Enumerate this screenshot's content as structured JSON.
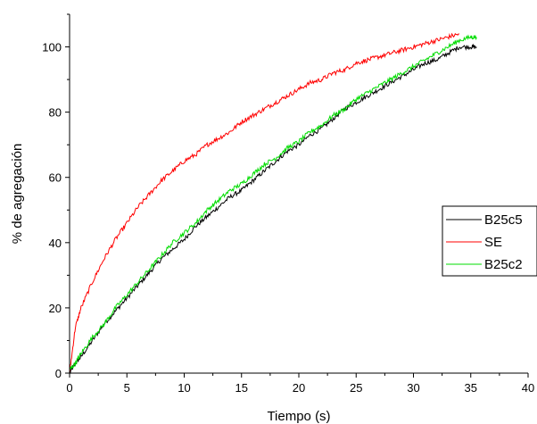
{
  "chart_data": {
    "type": "line",
    "title": "",
    "xlabel": "Tiempo (s)",
    "ylabel": "% de agregación",
    "xlim": [
      0,
      40
    ],
    "ylim": [
      0,
      110
    ],
    "xticks": [
      0,
      5,
      10,
      15,
      20,
      25,
      30,
      35,
      40
    ],
    "yticks": [
      0,
      20,
      40,
      60,
      80,
      100
    ],
    "grid": false,
    "legend_position": "right",
    "series": [
      {
        "name": "B25c5",
        "color": "#000000",
        "x": [
          0,
          0.5,
          1,
          2,
          3,
          4,
          5,
          6,
          7,
          8,
          9,
          10,
          11,
          12,
          13,
          14,
          15,
          16,
          17,
          18,
          19,
          20,
          21,
          22,
          23,
          24,
          25,
          26,
          27,
          28,
          29,
          30,
          31,
          32,
          33,
          34,
          35,
          35.5
        ],
        "y": [
          0,
          3,
          5,
          10,
          15,
          19,
          23,
          27,
          31,
          35,
          38,
          41,
          45,
          48,
          51,
          54,
          56,
          59,
          62,
          65,
          68,
          70,
          73,
          75,
          78,
          81,
          83,
          85,
          87,
          89,
          91,
          93,
          95,
          96,
          98,
          100,
          100,
          100
        ]
      },
      {
        "name": "SE",
        "color": "#ff0000",
        "x": [
          0,
          0.5,
          1,
          2,
          3,
          4,
          5,
          6,
          7,
          8,
          9,
          10,
          11,
          12,
          13,
          14,
          15,
          16,
          17,
          18,
          19,
          20,
          21,
          22,
          23,
          24,
          25,
          26,
          27,
          28,
          29,
          30,
          31,
          32,
          33,
          34
        ],
        "y": [
          0,
          14,
          20,
          28,
          35,
          41,
          46,
          51,
          55,
          59,
          62,
          65,
          67,
          70,
          72,
          74,
          77,
          79,
          81,
          83,
          85,
          87,
          89,
          90,
          92,
          93,
          95,
          96,
          97,
          98,
          99,
          100,
          101,
          102,
          103,
          104
        ]
      },
      {
        "name": "B25c2",
        "color": "#00dd00",
        "x": [
          0,
          0.5,
          1,
          2,
          3,
          4,
          5,
          6,
          7,
          8,
          9,
          10,
          11,
          12,
          13,
          14,
          15,
          16,
          17,
          18,
          19,
          20,
          21,
          22,
          23,
          24,
          25,
          26,
          27,
          28,
          29,
          30,
          31,
          32,
          33,
          34,
          35,
          35.5
        ],
        "y": [
          1,
          3,
          6,
          11,
          15,
          20,
          24,
          28,
          32,
          36,
          40,
          43,
          46,
          50,
          53,
          56,
          58,
          61,
          64,
          66,
          69,
          71,
          74,
          76,
          79,
          81,
          84,
          86,
          88,
          90,
          92,
          94,
          96,
          98,
          100,
          102,
          103,
          103
        ]
      }
    ]
  }
}
